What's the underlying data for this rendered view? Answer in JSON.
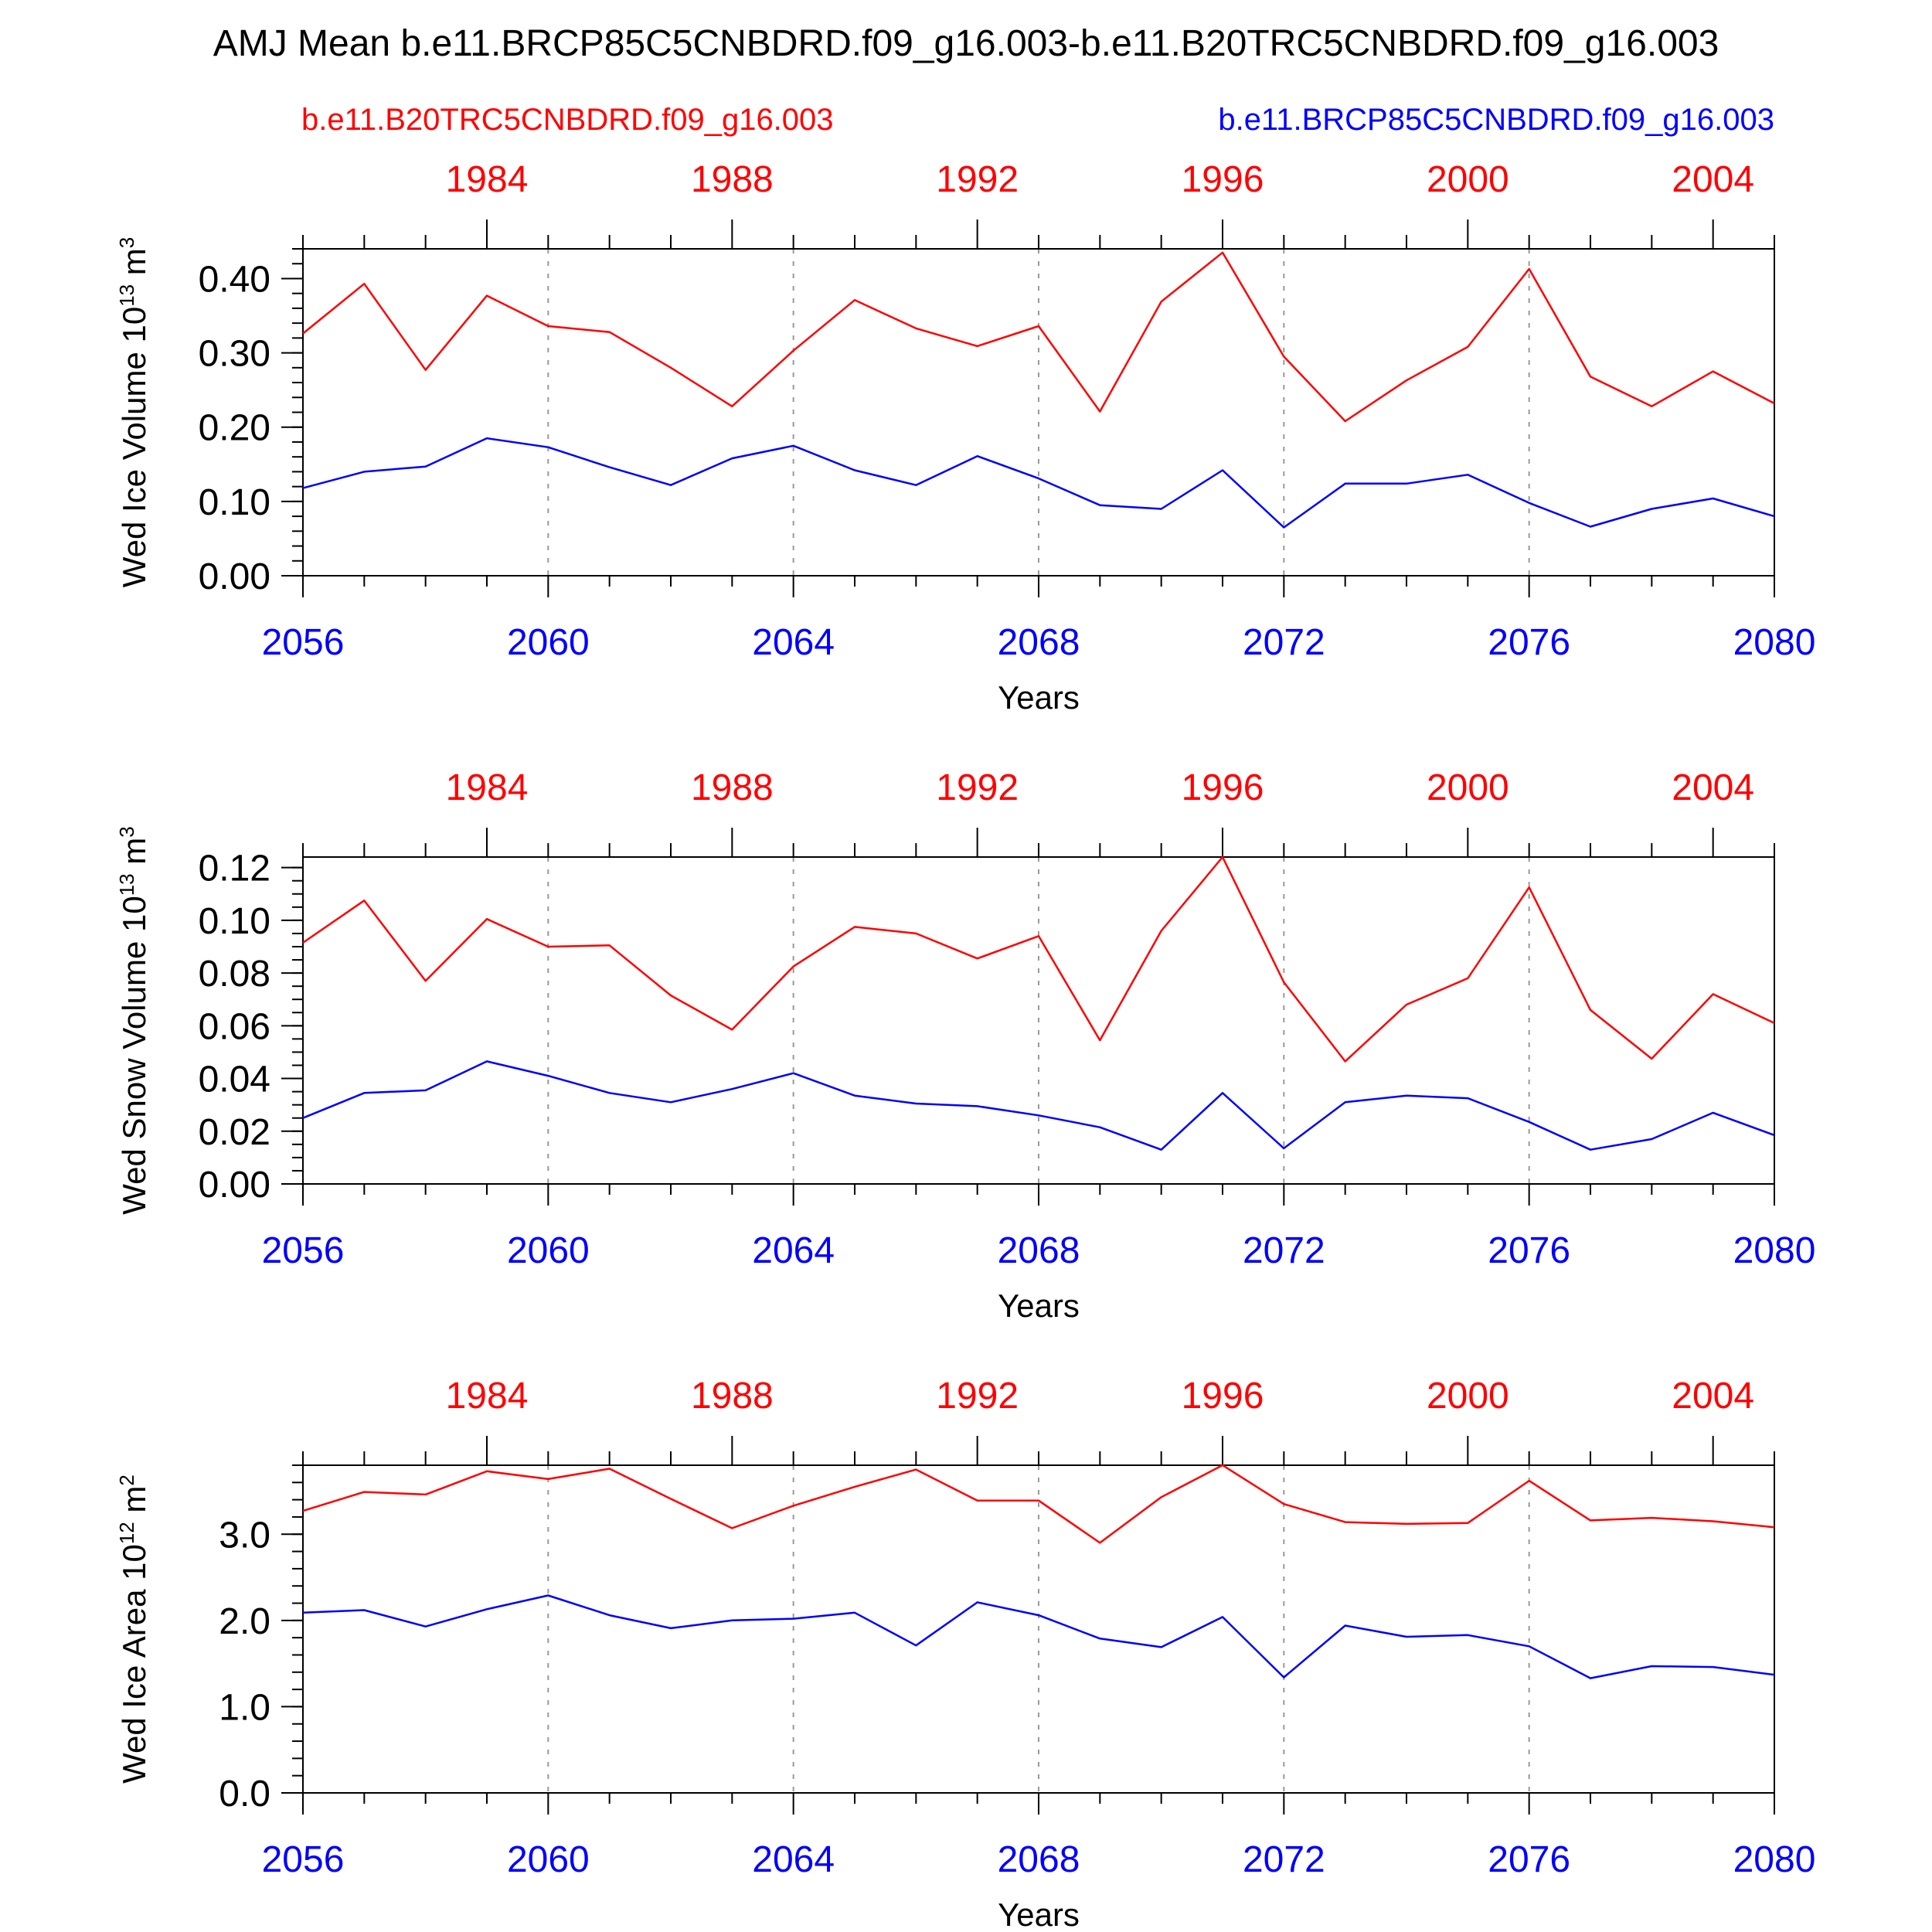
{
  "title": "AMJ Mean b.e11.BRCP85C5CNBDRD.f09_g16.003-b.e11.B20TRC5CNBDRD.f09_g16.003",
  "legend": {
    "left_label": "b.e11.B20TRC5CNBDRD.f09_g16.003",
    "right_label": "b.e11.BRCP85C5CNBDRD.f09_g16.003",
    "left_color": "#ff0000",
    "right_color": "#0000ff"
  },
  "colors": {
    "red": "#ff0000",
    "blue": "#0000ff",
    "axis": "#000000",
    "grid": "#999999"
  },
  "chart_data": [
    {
      "type": "line",
      "ylabel": "Wed Ice Volume 10^13 m^3",
      "ylabel_parts": {
        "pre": "Wed Ice Volume 10",
        "exp": "13",
        "mid": " m",
        "exp2": "3"
      },
      "xlabel": "Years",
      "xlim": [
        2056,
        2080
      ],
      "ylim": [
        0,
        0.44
      ],
      "yticks": [
        0,
        0.1,
        0.2,
        0.3,
        0.4
      ],
      "ytick_labels": [
        "0.00",
        "0.10",
        "0.20",
        "0.30",
        "0.40"
      ],
      "y_minor_step": 0.02,
      "bottom_ticks": [
        2056,
        2060,
        2064,
        2068,
        2072,
        2076,
        2080
      ],
      "bottom_tick_labels": [
        "2056",
        "2060",
        "2064",
        "2068",
        "2072",
        "2076",
        "2080"
      ],
      "top_ticks": [
        1984,
        1988,
        1992,
        1996,
        2000,
        2004
      ],
      "top_tick_labels": [
        "1984",
        "1988",
        "1992",
        "1996",
        "2000",
        "2004"
      ],
      "top_offset": 75,
      "grid_x": [
        2060,
        2064,
        2068,
        2072,
        2076
      ],
      "series": [
        {
          "name": "b.e11.B20TRC5CNBDRD.f09_g16.003",
          "color": "#ff0000",
          "values": [
            0.326,
            0.393,
            0.277,
            0.377,
            0.336,
            0.328,
            0.28,
            0.228,
            0.303,
            0.371,
            0.333,
            0.309,
            0.336,
            0.221,
            0.369,
            0.435,
            0.295,
            0.208,
            0.263,
            0.308,
            0.413,
            0.268,
            0.228,
            0.275,
            0.232
          ]
        },
        {
          "name": "b.e11.BRCP85C5CNBDRD.f09_g16.003",
          "color": "#0000ff",
          "values": [
            0.118,
            0.14,
            0.147,
            0.185,
            0.173,
            0.146,
            0.122,
            0.158,
            0.175,
            0.142,
            0.122,
            0.161,
            0.131,
            0.095,
            0.09,
            0.142,
            0.065,
            0.124,
            0.124,
            0.136,
            0.098,
            0.066,
            0.09,
            0.104,
            0.08
          ]
        }
      ]
    },
    {
      "type": "line",
      "ylabel": "Wed Snow Volume 10^13 m^3",
      "ylabel_parts": {
        "pre": "Wed Snow Volume 10",
        "exp": "13",
        "mid": " m",
        "exp2": "3"
      },
      "xlabel": "Years",
      "xlim": [
        2056,
        2080
      ],
      "ylim": [
        0,
        0.124
      ],
      "yticks": [
        0,
        0.02,
        0.04,
        0.06,
        0.08,
        0.1,
        0.12
      ],
      "ytick_labels": [
        "0.00",
        "0.02",
        "0.04",
        "0.06",
        "0.08",
        "0.10",
        "0.12"
      ],
      "y_minor_step": 0.005,
      "bottom_ticks": [
        2056,
        2060,
        2064,
        2068,
        2072,
        2076,
        2080
      ],
      "bottom_tick_labels": [
        "2056",
        "2060",
        "2064",
        "2068",
        "2072",
        "2076",
        "2080"
      ],
      "top_ticks": [
        1984,
        1988,
        1992,
        1996,
        2000,
        2004
      ],
      "top_tick_labels": [
        "1984",
        "1988",
        "1992",
        "1996",
        "2000",
        "2004"
      ],
      "top_offset": 75,
      "grid_x": [
        2060,
        2064,
        2068,
        2072,
        2076
      ],
      "series": [
        {
          "name": "b.e11.B20TRC5CNBDRD.f09_g16.003",
          "color": "#ff0000",
          "values": [
            0.0915,
            0.1075,
            0.077,
            0.1005,
            0.09,
            0.0905,
            0.0715,
            0.0585,
            0.0825,
            0.0975,
            0.095,
            0.0855,
            0.094,
            0.0545,
            0.096,
            0.124,
            0.0765,
            0.0465,
            0.068,
            0.078,
            0.1125,
            0.066,
            0.0475,
            0.072,
            0.061
          ]
        },
        {
          "name": "b.e11.BRCP85C5CNBDRD.f09_g16.003",
          "color": "#0000ff",
          "values": [
            0.025,
            0.0345,
            0.0355,
            0.0465,
            0.041,
            0.0345,
            0.031,
            0.036,
            0.042,
            0.0335,
            0.0305,
            0.0295,
            0.026,
            0.0215,
            0.013,
            0.0345,
            0.0135,
            0.031,
            0.0335,
            0.0325,
            0.0235,
            0.013,
            0.017,
            0.027,
            0.0185
          ]
        }
      ]
    },
    {
      "type": "line",
      "ylabel": "Wed Ice Area 10^12 m^2",
      "ylabel_parts": {
        "pre": "Wed Ice Area 10",
        "exp": "12",
        "mid": " m",
        "exp2": "2"
      },
      "xlabel": "Years",
      "xlim": [
        2056,
        2080
      ],
      "ylim": [
        0,
        3.8
      ],
      "yticks": [
        0,
        1,
        2,
        3
      ],
      "ytick_labels": [
        "0.0",
        "1.0",
        "2.0",
        "3.0"
      ],
      "y_minor_step": 0.2,
      "bottom_ticks": [
        2056,
        2060,
        2064,
        2068,
        2072,
        2076,
        2080
      ],
      "bottom_tick_labels": [
        "2056",
        "2060",
        "2064",
        "2068",
        "2072",
        "2076",
        "2080"
      ],
      "top_ticks": [
        1984,
        1988,
        1992,
        1996,
        2000,
        2004
      ],
      "top_tick_labels": [
        "1984",
        "1988",
        "1992",
        "1996",
        "2000",
        "2004"
      ],
      "top_offset": 75,
      "grid_x": [
        2060,
        2064,
        2068,
        2072,
        2076
      ],
      "series": [
        {
          "name": "b.e11.B20TRC5CNBDRD.f09_g16.003",
          "color": "#ff0000",
          "values": [
            3.27,
            3.49,
            3.46,
            3.73,
            3.64,
            3.76,
            3.41,
            3.07,
            3.33,
            3.55,
            3.75,
            3.39,
            3.39,
            2.9,
            3.43,
            3.8,
            3.35,
            3.14,
            3.12,
            3.13,
            3.62,
            3.16,
            3.19,
            3.15,
            3.08
          ]
        },
        {
          "name": "b.e11.BRCP85C5CNBDRD.f09_g16.003",
          "color": "#0000ff",
          "values": [
            2.09,
            2.12,
            1.93,
            2.13,
            2.29,
            2.06,
            1.91,
            2.0,
            2.02,
            2.09,
            1.71,
            2.21,
            2.06,
            1.79,
            1.69,
            2.04,
            1.34,
            1.94,
            1.81,
            1.83,
            1.7,
            1.33,
            1.47,
            1.46,
            1.37
          ]
        }
      ]
    }
  ]
}
